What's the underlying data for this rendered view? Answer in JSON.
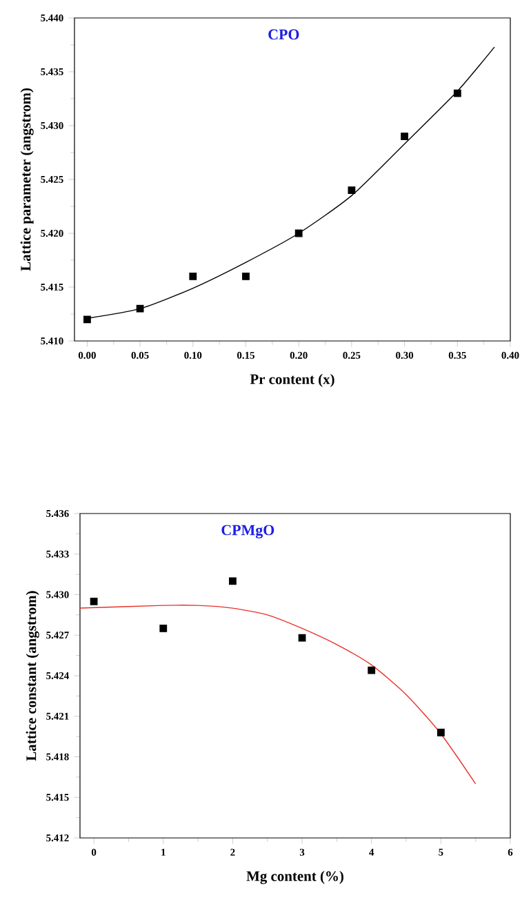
{
  "chart_data": [
    {
      "type": "scatter",
      "xlabel": "Pr content (x)",
      "ylabel": "Lattice parameter (angstrom)",
      "annotations": [
        "CPO"
      ],
      "xlim": [
        -0.012,
        0.4
      ],
      "ylim": [
        5.41,
        5.44
      ],
      "xticks": [
        {
          "value": 0,
          "label": "0.00"
        },
        {
          "value": 0.05,
          "label": "0.05"
        },
        {
          "value": 0.1,
          "label": "0.10"
        },
        {
          "value": 0.15,
          "label": "0.15"
        },
        {
          "value": 0.2,
          "label": "0.20"
        },
        {
          "value": 0.25,
          "label": "0.25"
        },
        {
          "value": 0.3,
          "label": "0.30"
        },
        {
          "value": 0.35,
          "label": "0.35"
        },
        {
          "value": 0.4,
          "label": "0.40"
        }
      ],
      "yticks": [
        {
          "value": 5.41,
          "label": "5.410"
        },
        {
          "value": 5.415,
          "label": "5.415"
        },
        {
          "value": 5.42,
          "label": "5.420"
        },
        {
          "value": 5.425,
          "label": "5.425"
        },
        {
          "value": 5.43,
          "label": "5.430"
        },
        {
          "value": 5.435,
          "label": "5.435"
        },
        {
          "value": 5.44,
          "label": "5.440"
        }
      ],
      "series": [
        {
          "color": "#000000",
          "marker": "square",
          "x": [
            0,
            0.05,
            0.1,
            0.15,
            0.2,
            0.25,
            0.3,
            0.35
          ],
          "values": [
            5.412,
            5.413,
            5.416,
            5.416,
            5.42,
            5.424,
            5.429,
            5.433
          ]
        },
        {
          "type": "line",
          "color": "#000000",
          "x": [
            0,
            0.05,
            0.1,
            0.15,
            0.2,
            0.25,
            0.3,
            0.35,
            0.385
          ],
          "values": [
            5.4121,
            5.413,
            5.4149,
            5.4173,
            5.42,
            5.4235,
            5.4283,
            5.4332,
            5.4373
          ]
        }
      ]
    },
    {
      "type": "scatter",
      "xlabel": "Mg content (%)",
      "ylabel": "Lattice constant (angstrom)",
      "annotations": [
        "CPMgO"
      ],
      "xlim": [
        -0.2,
        6
      ],
      "ylim": [
        5.412,
        5.436
      ],
      "xticks": [
        0,
        1,
        2,
        3,
        4,
        5,
        6
      ],
      "yticks": [
        {
          "value": 5.412,
          "label": "5.412"
        },
        {
          "value": 5.415,
          "label": "5.415"
        },
        {
          "value": 5.418,
          "label": "5.418"
        },
        {
          "value": 5.421,
          "label": "5.421"
        },
        {
          "value": 5.424,
          "label": "5.424"
        },
        {
          "value": 5.427,
          "label": "5.427"
        },
        {
          "value": 5.43,
          "label": "5.430"
        },
        {
          "value": 5.433,
          "label": "5.433"
        },
        {
          "value": 5.436,
          "label": "5.436"
        }
      ],
      "series": [
        {
          "color": "#000000",
          "marker": "square",
          "x": [
            0,
            1,
            2,
            3,
            4,
            5
          ],
          "values": [
            5.4295,
            5.4275,
            5.431,
            5.4268,
            5.4244,
            5.4198
          ]
        },
        {
          "type": "line",
          "color": "#e8302a",
          "x": [
            -0.2,
            1,
            1.5,
            2,
            2.5,
            3,
            3.5,
            4,
            4.5,
            5,
            5.5
          ],
          "values": [
            5.429,
            5.4292,
            5.4292,
            5.429,
            5.4285,
            5.4275,
            5.4263,
            5.4248,
            5.4226,
            5.4197,
            5.416
          ]
        }
      ]
    }
  ]
}
